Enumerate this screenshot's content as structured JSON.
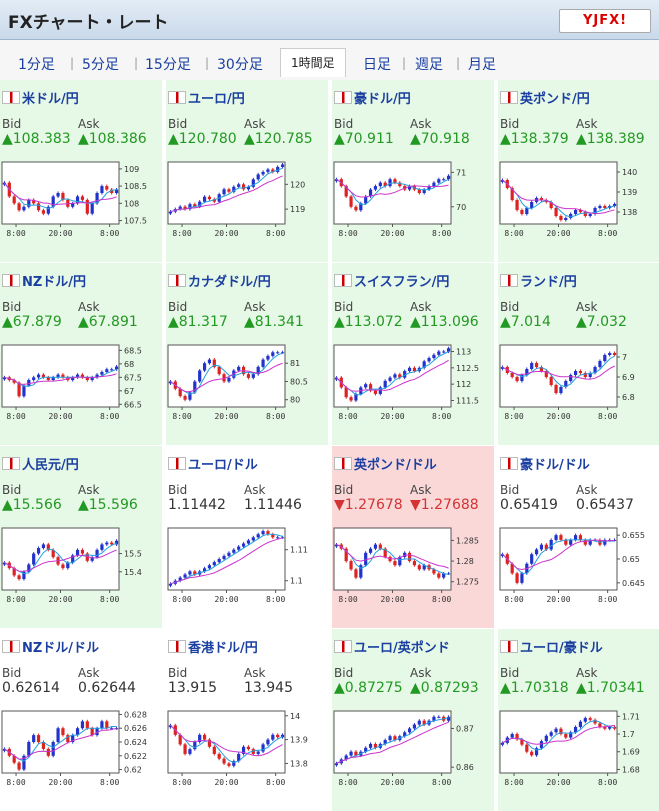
{
  "header": {
    "title": "FXチャート・レート",
    "logo": "YJFX!"
  },
  "tabs": [
    {
      "label": "1分足"
    },
    {
      "label": "5分足"
    },
    {
      "label": "15分足"
    },
    {
      "label": "30分足"
    },
    {
      "label": "1時間足",
      "active": true
    },
    {
      "label": "日足"
    },
    {
      "label": "週足"
    },
    {
      "label": "月足"
    }
  ],
  "labels": {
    "bid": "Bid",
    "ask": "Ask"
  },
  "colors": {
    "up_bg": "#e6f8e6",
    "down_bg": "#fbd8d8",
    "up_text": "#229922",
    "down_text": "#d33333",
    "candle_up": "#2233cc",
    "candle_down": "#dd2222",
    "ma_short": "#22a0e0",
    "ma_long": "#cc33cc"
  },
  "pairs": [
    {
      "name": "米ドル/円",
      "flag": "us-flag-icon",
      "trend": "up",
      "bid": "▲108.383",
      "ask": "▲108.386",
      "chart_data": {
        "type": "candlestick",
        "x_ticks": [
          "8:00",
          "20:00",
          "8:00"
        ],
        "y_ticks": [
          "109",
          "108.5",
          "108",
          "107.5"
        ],
        "ylim": [
          107.4,
          109.2
        ],
        "close": [
          108.6,
          108.2,
          108.0,
          107.8,
          107.9,
          108.1,
          108.0,
          107.8,
          107.7,
          107.9,
          108.2,
          108.3,
          108.1,
          107.9,
          108.0,
          108.2,
          108.1,
          107.7,
          108.0,
          108.3,
          108.5,
          108.4,
          108.3,
          108.4
        ]
      }
    },
    {
      "name": "ユーロ/円",
      "flag": "eu-flag-icon",
      "trend": "up",
      "bid": "▲120.780",
      "ask": "▲120.785",
      "chart_data": {
        "type": "candlestick",
        "x_ticks": [
          "8:00",
          "20:00",
          "8:00"
        ],
        "y_ticks": [
          "120",
          "119"
        ],
        "ylim": [
          118.4,
          120.9
        ],
        "close": [
          118.9,
          119.0,
          119.1,
          119.0,
          119.2,
          119.1,
          119.3,
          119.5,
          119.4,
          119.3,
          119.6,
          119.8,
          119.7,
          119.9,
          120.0,
          119.8,
          119.9,
          120.2,
          120.4,
          120.5,
          120.6,
          120.5,
          120.7,
          120.8
        ]
      }
    },
    {
      "name": "豪ドル/円",
      "flag": "au-flag-icon",
      "trend": "up",
      "bid": "▲70.911",
      "ask": "▲70.918",
      "chart_data": {
        "type": "candlestick",
        "x_ticks": [
          "8:00",
          "20:00",
          "8:00"
        ],
        "y_ticks": [
          "71",
          "70"
        ],
        "ylim": [
          69.5,
          71.3
        ],
        "close": [
          70.8,
          70.6,
          70.3,
          70.0,
          69.9,
          70.1,
          70.3,
          70.5,
          70.6,
          70.7,
          70.6,
          70.8,
          70.7,
          70.6,
          70.5,
          70.6,
          70.5,
          70.4,
          70.5,
          70.6,
          70.7,
          70.8,
          70.8,
          70.9
        ]
      }
    },
    {
      "name": "英ポンド/円",
      "flag": "gb-flag-icon",
      "trend": "up",
      "bid": "▲138.379",
      "ask": "▲138.389",
      "chart_data": {
        "type": "candlestick",
        "x_ticks": [
          "8:00",
          "20:00",
          "8:00"
        ],
        "y_ticks": [
          "140",
          "139",
          "138"
        ],
        "ylim": [
          137.4,
          140.5
        ],
        "close": [
          139.6,
          139.2,
          138.6,
          138.1,
          137.9,
          138.2,
          138.5,
          138.7,
          138.6,
          138.5,
          138.2,
          137.8,
          137.6,
          137.7,
          137.9,
          138.1,
          138.0,
          137.8,
          137.9,
          138.2,
          138.3,
          138.2,
          138.3,
          138.4
        ]
      }
    },
    {
      "name": "NZドル/円",
      "flag": "nz-flag-icon",
      "trend": "up",
      "bid": "▲67.879",
      "ask": "▲67.891",
      "chart_data": {
        "type": "candlestick",
        "x_ticks": [
          "8:00",
          "20:00",
          "8:00"
        ],
        "y_ticks": [
          "68.5",
          "68",
          "67.5",
          "67",
          "66.5"
        ],
        "ylim": [
          66.4,
          68.7
        ],
        "close": [
          67.5,
          67.4,
          67.3,
          66.8,
          67.2,
          67.4,
          67.5,
          67.6,
          67.5,
          67.4,
          67.5,
          67.6,
          67.5,
          67.4,
          67.5,
          67.6,
          67.5,
          67.4,
          67.5,
          67.6,
          67.7,
          67.8,
          67.8,
          67.9
        ]
      }
    },
    {
      "name": "カナダドル/円",
      "flag": "ca-flag-icon",
      "trend": "up",
      "bid": "▲81.317",
      "ask": "▲81.341",
      "chart_data": {
        "type": "candlestick",
        "x_ticks": [
          "8:00",
          "20:00",
          "8:00"
        ],
        "y_ticks": [
          "81",
          "80.5",
          "80"
        ],
        "ylim": [
          79.8,
          81.5
        ],
        "close": [
          80.5,
          80.3,
          80.1,
          80.0,
          80.2,
          80.5,
          80.8,
          81.0,
          81.1,
          80.9,
          80.7,
          80.5,
          80.6,
          80.8,
          80.9,
          80.7,
          80.6,
          80.7,
          80.9,
          81.1,
          81.2,
          81.3,
          81.3,
          81.3
        ]
      }
    },
    {
      "name": "スイスフラン/円",
      "flag": "ch-flag-icon",
      "trend": "up",
      "bid": "▲113.072",
      "ask": "▲113.096",
      "chart_data": {
        "type": "candlestick",
        "x_ticks": [
          "8:00",
          "20:00",
          "8:00"
        ],
        "y_ticks": [
          "113",
          "112.5",
          "112",
          "111.5"
        ],
        "ylim": [
          111.3,
          113.2
        ],
        "close": [
          112.2,
          111.9,
          111.6,
          111.5,
          111.7,
          111.9,
          112.0,
          111.8,
          111.7,
          111.9,
          112.1,
          112.2,
          112.3,
          112.2,
          112.4,
          112.5,
          112.4,
          112.5,
          112.7,
          112.8,
          112.9,
          113.0,
          113.0,
          113.1
        ]
      }
    },
    {
      "name": "ランド/円",
      "flag": "za-flag-icon",
      "trend": "up",
      "bid": "▲7.014",
      "ask": "▲7.032",
      "chart_data": {
        "type": "candlestick",
        "x_ticks": [
          "8:00",
          "20:00",
          "8:00"
        ],
        "y_ticks": [
          "7",
          "6.9",
          "6.8"
        ],
        "ylim": [
          6.75,
          7.06
        ],
        "close": [
          6.95,
          6.92,
          6.9,
          6.88,
          6.91,
          6.94,
          6.97,
          6.95,
          6.93,
          6.9,
          6.86,
          6.82,
          6.85,
          6.88,
          6.91,
          6.93,
          6.92,
          6.9,
          6.92,
          6.95,
          6.98,
          7.01,
          7.02,
          7.01
        ]
      }
    },
    {
      "name": "人民元/円",
      "flag": "cn-flag-icon",
      "trend": "up",
      "bid": "▲15.566",
      "ask": "▲15.596",
      "chart_data": {
        "type": "candlestick",
        "x_ticks": [
          "8:00",
          "20:00",
          "8:00"
        ],
        "y_ticks": [
          "15.5",
          "15.4"
        ],
        "ylim": [
          15.3,
          15.64
        ],
        "close": [
          15.45,
          15.42,
          15.38,
          15.36,
          15.4,
          15.44,
          15.5,
          15.53,
          15.55,
          15.52,
          15.48,
          15.44,
          15.42,
          15.45,
          15.49,
          15.52,
          15.5,
          15.46,
          15.48,
          15.52,
          15.55,
          15.56,
          15.55,
          15.57
        ]
      }
    },
    {
      "name": "ユーロ/ドル",
      "flag": "eu-flag-icon",
      "trend": "neutral",
      "bid": "1.11442",
      "ask": "1.11446",
      "chart_data": {
        "type": "candlestick",
        "x_ticks": [
          "8:00",
          "20:00",
          "8:00"
        ],
        "y_ticks": [
          "1.11",
          "1.1"
        ],
        "ylim": [
          1.097,
          1.117
        ],
        "close": [
          1.099,
          1.1,
          1.101,
          1.102,
          1.103,
          1.102,
          1.103,
          1.104,
          1.105,
          1.106,
          1.107,
          1.108,
          1.109,
          1.11,
          1.111,
          1.112,
          1.113,
          1.114,
          1.115,
          1.116,
          1.115,
          1.114,
          1.114,
          1.114
        ]
      }
    },
    {
      "name": "英ポンド/ドル",
      "flag": "gb-flag-icon",
      "trend": "down",
      "bid": "▼1.27678",
      "ask": "▼1.27688",
      "chart_data": {
        "type": "candlestick",
        "x_ticks": [
          "8:00",
          "20:00",
          "8:00"
        ],
        "y_ticks": [
          "1.285",
          "1.28",
          "1.275"
        ],
        "ylim": [
          1.273,
          1.288
        ],
        "close": [
          1.284,
          1.283,
          1.28,
          1.278,
          1.276,
          1.279,
          1.282,
          1.283,
          1.284,
          1.283,
          1.281,
          1.28,
          1.279,
          1.281,
          1.282,
          1.28,
          1.279,
          1.278,
          1.279,
          1.278,
          1.277,
          1.276,
          1.277,
          1.277
        ]
      }
    },
    {
      "name": "豪ドル/ドル",
      "flag": "au-flag-icon",
      "trend": "neutral",
      "bid": "0.65419",
      "ask": "0.65437",
      "chart_data": {
        "type": "candlestick",
        "x_ticks": [
          "8:00",
          "20:00",
          "8:00"
        ],
        "y_ticks": [
          "0.655",
          "0.65",
          "0.645"
        ],
        "ylim": [
          0.6435,
          0.6565
        ],
        "close": [
          0.651,
          0.649,
          0.647,
          0.645,
          0.647,
          0.649,
          0.651,
          0.652,
          0.653,
          0.652,
          0.654,
          0.655,
          0.654,
          0.653,
          0.654,
          0.655,
          0.654,
          0.653,
          0.654,
          0.654,
          0.653,
          0.654,
          0.654,
          0.654
        ]
      }
    },
    {
      "name": "NZドル/ドル",
      "flag": "nz-flag-icon",
      "trend": "neutral",
      "bid": "0.62614",
      "ask": "0.62644",
      "chart_data": {
        "type": "candlestick",
        "x_ticks": [
          "8:00",
          "20:00",
          "8:00"
        ],
        "y_ticks": [
          "0.628",
          "0.626",
          "0.624",
          "0.622",
          "0.62"
        ],
        "ylim": [
          0.6195,
          0.6285
        ],
        "close": [
          0.623,
          0.622,
          0.621,
          0.62,
          0.622,
          0.624,
          0.625,
          0.624,
          0.623,
          0.622,
          0.624,
          0.626,
          0.625,
          0.624,
          0.625,
          0.626,
          0.627,
          0.626,
          0.625,
          0.626,
          0.627,
          0.626,
          0.626,
          0.626
        ]
      }
    },
    {
      "name": "香港ドル/円",
      "flag": "hk-flag-icon",
      "trend": "neutral",
      "bid": "13.915",
      "ask": "13.945",
      "chart_data": {
        "type": "candlestick",
        "x_ticks": [
          "8:00",
          "20:00",
          "8:00"
        ],
        "y_ticks": [
          "14",
          "13.9",
          "13.8"
        ],
        "ylim": [
          13.76,
          14.02
        ],
        "close": [
          13.96,
          13.92,
          13.88,
          13.84,
          13.86,
          13.89,
          13.92,
          13.9,
          13.87,
          13.84,
          13.82,
          13.8,
          13.79,
          13.81,
          13.84,
          13.87,
          13.86,
          13.84,
          13.85,
          13.88,
          13.9,
          13.92,
          13.91,
          13.92
        ]
      }
    },
    {
      "name": "ユーロ/英ポンド",
      "flag": "gb-flag-icon",
      "trend": "up",
      "bid": "▲0.87275",
      "ask": "▲0.87293",
      "chart_data": {
        "type": "candlestick",
        "x_ticks": [
          "8:00",
          "20:00",
          "8:00"
        ],
        "y_ticks": [
          "0.87",
          "0.86"
        ],
        "ylim": [
          0.8585,
          0.8745
        ],
        "close": [
          0.861,
          0.862,
          0.863,
          0.864,
          0.863,
          0.864,
          0.865,
          0.866,
          0.865,
          0.866,
          0.867,
          0.868,
          0.867,
          0.868,
          0.869,
          0.87,
          0.871,
          0.872,
          0.871,
          0.872,
          0.873,
          0.873,
          0.872,
          0.873
        ]
      }
    },
    {
      "name": "ユーロ/豪ドル",
      "flag": "au-flag-icon",
      "trend": "up",
      "bid": "▲1.70318",
      "ask": "▲1.70341",
      "chart_data": {
        "type": "candlestick",
        "x_ticks": [
          "8:00",
          "20:00",
          "8:00"
        ],
        "y_ticks": [
          "1.71",
          "1.7",
          "1.69",
          "1.68"
        ],
        "ylim": [
          1.678,
          1.713
        ],
        "close": [
          1.695,
          1.698,
          1.7,
          1.697,
          1.694,
          1.69,
          1.688,
          1.692,
          1.696,
          1.699,
          1.701,
          1.703,
          1.7,
          1.698,
          1.701,
          1.704,
          1.707,
          1.709,
          1.708,
          1.706,
          1.704,
          1.703,
          1.704,
          1.703
        ]
      }
    }
  ]
}
